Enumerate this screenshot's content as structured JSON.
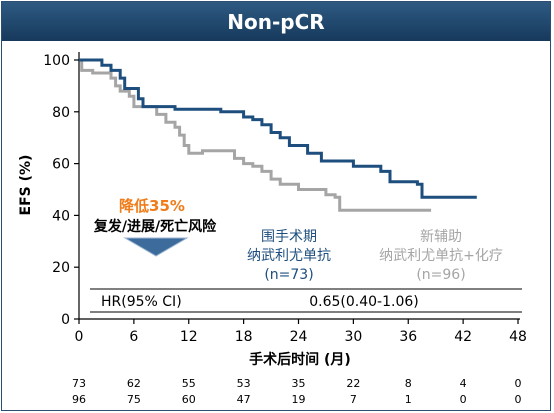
{
  "title": "Non-pCR",
  "colors": {
    "header": "#1f4a73",
    "series_neo": "#1d4e7d",
    "series_adj": "#a5a5a5",
    "reduction": "#f07d1a"
  },
  "chart_data": {
    "type": "line",
    "subtype": "kaplan-meier",
    "xlabel": "手术后时间 (月)",
    "ylabel": "EFS (%)",
    "xlim": [
      0,
      48
    ],
    "ylim": [
      0,
      100
    ],
    "x_ticks": [
      "0",
      "6",
      "12",
      "18",
      "24",
      "30",
      "36",
      "42",
      "48"
    ],
    "y_ticks": [
      "0",
      "20",
      "40",
      "60",
      "80",
      "100"
    ],
    "grid": false,
    "series": [
      {
        "name": "围手术期纳武利尤单抗 (n=73)",
        "label_lines": [
          "围手术期",
          "纳武利尤单抗",
          "(n=73)"
        ],
        "step_points": [
          [
            0,
            100
          ],
          [
            2.5,
            100
          ],
          [
            2.5,
            98
          ],
          [
            3.5,
            98
          ],
          [
            3.5,
            96
          ],
          [
            4.5,
            96
          ],
          [
            4.5,
            93
          ],
          [
            5,
            93
          ],
          [
            5,
            89
          ],
          [
            6.5,
            89
          ],
          [
            6.5,
            85
          ],
          [
            7,
            85
          ],
          [
            7,
            82
          ],
          [
            10.5,
            82
          ],
          [
            10.5,
            81
          ],
          [
            15.5,
            81
          ],
          [
            15.5,
            80
          ],
          [
            18,
            80
          ],
          [
            18,
            78
          ],
          [
            19,
            78
          ],
          [
            19,
            77
          ],
          [
            20,
            77
          ],
          [
            20,
            75
          ],
          [
            21,
            75
          ],
          [
            21,
            72
          ],
          [
            22,
            72
          ],
          [
            22,
            70
          ],
          [
            23,
            70
          ],
          [
            23,
            67
          ],
          [
            25,
            67
          ],
          [
            25,
            64
          ],
          [
            26.5,
            64
          ],
          [
            26.5,
            61
          ],
          [
            30,
            61
          ],
          [
            30,
            59
          ],
          [
            33,
            59
          ],
          [
            33,
            57
          ],
          [
            34,
            57
          ],
          [
            34,
            53
          ],
          [
            37,
            53
          ],
          [
            37,
            52
          ],
          [
            37.5,
            52
          ],
          [
            37.5,
            47
          ],
          [
            43.5,
            47
          ]
        ]
      },
      {
        "name": "新辅助纳武利尤单抗+化疗 (n=96)",
        "label_lines": [
          "新辅助",
          "纳武利尤单抗+化疗",
          "(n=96)"
        ],
        "step_points": [
          [
            0,
            100
          ],
          [
            0.3,
            100
          ],
          [
            0.3,
            96
          ],
          [
            1.5,
            96
          ],
          [
            1.5,
            95
          ],
          [
            3.5,
            95
          ],
          [
            3.5,
            93
          ],
          [
            4,
            93
          ],
          [
            4,
            90
          ],
          [
            4.5,
            90
          ],
          [
            4.5,
            88
          ],
          [
            5.5,
            88
          ],
          [
            5.5,
            86
          ],
          [
            6,
            86
          ],
          [
            6,
            82
          ],
          [
            8.5,
            82
          ],
          [
            8.5,
            79
          ],
          [
            9.5,
            79
          ],
          [
            9.5,
            76
          ],
          [
            10.5,
            76
          ],
          [
            10.5,
            74
          ],
          [
            11,
            74
          ],
          [
            11,
            71
          ],
          [
            11.5,
            71
          ],
          [
            11.5,
            67
          ],
          [
            12,
            67
          ],
          [
            12,
            64
          ],
          [
            13.5,
            64
          ],
          [
            13.5,
            65
          ],
          [
            17,
            65
          ],
          [
            17,
            62
          ],
          [
            18,
            62
          ],
          [
            18,
            60
          ],
          [
            19,
            60
          ],
          [
            19,
            59
          ],
          [
            20,
            59
          ],
          [
            20,
            57
          ],
          [
            21,
            57
          ],
          [
            21,
            54
          ],
          [
            22,
            54
          ],
          [
            22,
            52
          ],
          [
            24,
            52
          ],
          [
            24,
            50
          ],
          [
            27,
            50
          ],
          [
            27,
            48
          ],
          [
            28,
            48
          ],
          [
            28,
            47
          ],
          [
            28.5,
            47
          ],
          [
            28.5,
            42
          ],
          [
            38.5,
            42
          ]
        ]
      }
    ],
    "risk_table": {
      "neo": [
        "73",
        "62",
        "55",
        "53",
        "35",
        "22",
        "8",
        "4",
        "0"
      ],
      "adj": [
        "96",
        "75",
        "60",
        "47",
        "19",
        "7",
        "1",
        "0",
        "0"
      ]
    },
    "annotations": {
      "reduction": "降低35%",
      "risk_text": "复发/进展/死亡风险",
      "hr_label": "HR(95% CI)",
      "hr_value": "0.65(0.40-1.06)"
    }
  }
}
